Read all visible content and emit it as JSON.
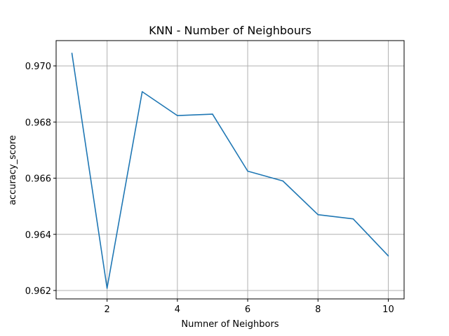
{
  "chart_data": {
    "type": "line",
    "title": "KNN - Number of Neighbours",
    "xlabel": "Numner of Neighbors",
    "ylabel": "accuracy_score",
    "grid": true,
    "xlim": [
      0.55,
      10.45
    ],
    "ylim": [
      0.9617,
      0.9709
    ],
    "x_ticks": [
      2,
      4,
      6,
      8,
      10
    ],
    "x_tick_labels": [
      "2",
      "4",
      "6",
      "8",
      "10"
    ],
    "y_ticks": [
      0.962,
      0.964,
      0.966,
      0.968,
      0.97
    ],
    "y_tick_labels": [
      "0.962",
      "0.964",
      "0.966",
      "0.968",
      "0.970"
    ],
    "series": [
      {
        "color": "#1f77b4",
        "x": [
          1,
          2,
          3,
          4,
          5,
          6,
          7,
          8,
          9,
          10
        ],
        "values": [
          0.97045,
          0.96208,
          0.96908,
          0.96823,
          0.96828,
          0.96625,
          0.9659,
          0.9647,
          0.96455,
          0.96323
        ]
      }
    ]
  }
}
